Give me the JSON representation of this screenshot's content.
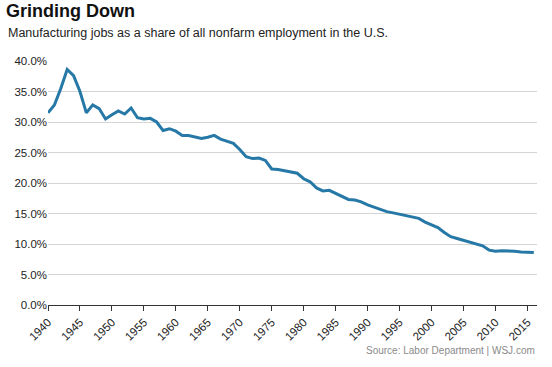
{
  "chart_data": {
    "type": "line",
    "title": "Grinding Down",
    "subtitle": "Manufacturing jobs as a share of all nonfarm employment in the U.S.",
    "annotations": [
      "Source: Labor Department | WSJ.com"
    ],
    "x": [
      1940,
      1941,
      1942,
      1943,
      1944,
      1945,
      1946,
      1947,
      1948,
      1949,
      1950,
      1951,
      1952,
      1953,
      1954,
      1955,
      1956,
      1957,
      1958,
      1959,
      1960,
      1961,
      1962,
      1963,
      1964,
      1965,
      1966,
      1967,
      1968,
      1969,
      1970,
      1971,
      1972,
      1973,
      1974,
      1975,
      1976,
      1977,
      1978,
      1979,
      1980,
      1981,
      1982,
      1983,
      1984,
      1985,
      1986,
      1987,
      1988,
      1989,
      1990,
      1991,
      1992,
      1993,
      1994,
      1995,
      1996,
      1997,
      1998,
      1999,
      2000,
      2001,
      2002,
      2003,
      2004,
      2005,
      2006,
      2007,
      2008,
      2009,
      2010,
      2011,
      2012,
      2013,
      2014,
      2015,
      2016
    ],
    "values": [
      31.5,
      32.8,
      35.5,
      38.6,
      37.6,
      35.0,
      31.5,
      32.8,
      32.2,
      30.5,
      31.2,
      31.8,
      31.3,
      32.3,
      30.7,
      30.5,
      30.6,
      30.0,
      28.6,
      28.9,
      28.5,
      27.8,
      27.8,
      27.5,
      27.3,
      27.5,
      27.8,
      27.2,
      26.8,
      26.5,
      25.5,
      24.3,
      24.0,
      24.1,
      23.7,
      22.3,
      22.2,
      22.0,
      21.8,
      21.6,
      20.7,
      20.2,
      19.2,
      18.7,
      18.8,
      18.3,
      17.7,
      17.3,
      17.2,
      16.9,
      16.4,
      16.0,
      15.6,
      15.3,
      15.1,
      14.9,
      14.6,
      14.4,
      14.2,
      13.6,
      13.2,
      12.7,
      11.9,
      11.2,
      10.9,
      10.6,
      10.4,
      10.0,
      9.7,
      9.0,
      8.8,
      8.9,
      8.9,
      8.8,
      8.7,
      8.7,
      8.6
    ],
    "color": "#2678a6",
    "xlim": [
      1940,
      2016.5
    ],
    "xticks": [
      1940,
      1945,
      1950,
      1955,
      1960,
      1965,
      1970,
      1975,
      1980,
      1985,
      1990,
      1995,
      2000,
      2005,
      2010,
      2015
    ],
    "ylim": [
      0,
      40
    ],
    "yticks": [
      {
        "value": 0,
        "label": "0.0%"
      },
      {
        "value": 5,
        "label": "5.0%"
      },
      {
        "value": 10,
        "label": "10.0%"
      },
      {
        "value": 15,
        "label": "15.0%"
      },
      {
        "value": 20,
        "label": "20.0%"
      },
      {
        "value": 25,
        "label": "25.0%"
      },
      {
        "value": 30,
        "label": "30.0%"
      },
      {
        "value": 35,
        "label": "35.0%"
      },
      {
        "value": 40,
        "label": "40.0%"
      }
    ],
    "grid": true
  }
}
